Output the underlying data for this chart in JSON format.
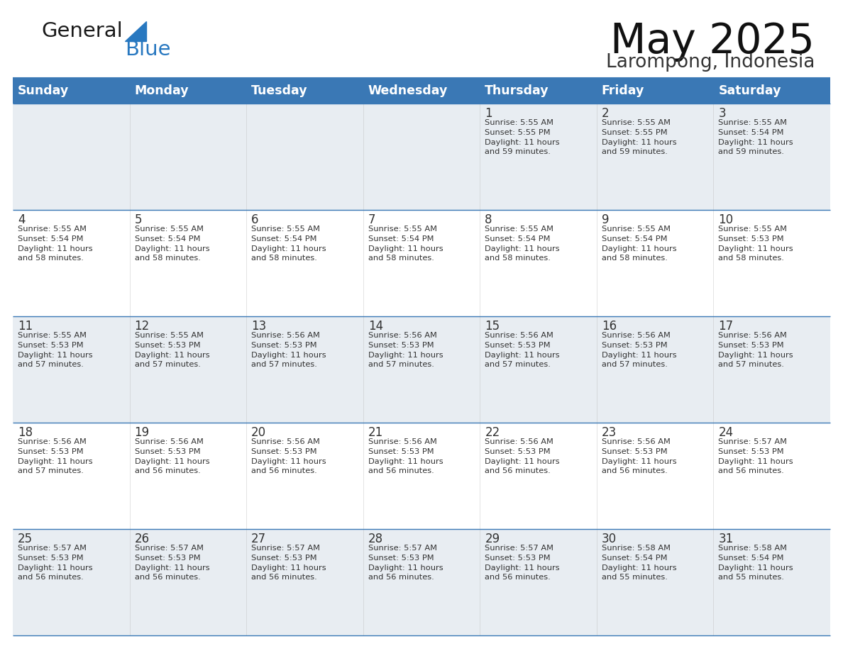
{
  "title": "May 2025",
  "subtitle": "Larompong, Indonesia",
  "header_bg_color": "#3a78b5",
  "header_text_color": "#ffffff",
  "row_bg_odd": "#e8edf2",
  "row_bg_even": "#ffffff",
  "border_color": "#3a78b5",
  "text_color": "#333333",
  "day_number_color": "#333333",
  "day_headers": [
    "Sunday",
    "Monday",
    "Tuesday",
    "Wednesday",
    "Thursday",
    "Friday",
    "Saturday"
  ],
  "logo_general_color": "#1a1a1a",
  "logo_blue_color": "#2878c0",
  "fig_width": 11.88,
  "fig_height": 9.18,
  "calendar_data": [
    [
      {
        "day": "",
        "sunrise": "",
        "sunset": "",
        "daylight": ""
      },
      {
        "day": "",
        "sunrise": "",
        "sunset": "",
        "daylight": ""
      },
      {
        "day": "",
        "sunrise": "",
        "sunset": "",
        "daylight": ""
      },
      {
        "day": "",
        "sunrise": "",
        "sunset": "",
        "daylight": ""
      },
      {
        "day": "1",
        "sunrise": "5:55 AM",
        "sunset": "5:55 PM",
        "daylight": "11 hours and 59 minutes."
      },
      {
        "day": "2",
        "sunrise": "5:55 AM",
        "sunset": "5:55 PM",
        "daylight": "11 hours and 59 minutes."
      },
      {
        "day": "3",
        "sunrise": "5:55 AM",
        "sunset": "5:54 PM",
        "daylight": "11 hours and 59 minutes."
      }
    ],
    [
      {
        "day": "4",
        "sunrise": "5:55 AM",
        "sunset": "5:54 PM",
        "daylight": "11 hours and 58 minutes."
      },
      {
        "day": "5",
        "sunrise": "5:55 AM",
        "sunset": "5:54 PM",
        "daylight": "11 hours and 58 minutes."
      },
      {
        "day": "6",
        "sunrise": "5:55 AM",
        "sunset": "5:54 PM",
        "daylight": "11 hours and 58 minutes."
      },
      {
        "day": "7",
        "sunrise": "5:55 AM",
        "sunset": "5:54 PM",
        "daylight": "11 hours and 58 minutes."
      },
      {
        "day": "8",
        "sunrise": "5:55 AM",
        "sunset": "5:54 PM",
        "daylight": "11 hours and 58 minutes."
      },
      {
        "day": "9",
        "sunrise": "5:55 AM",
        "sunset": "5:54 PM",
        "daylight": "11 hours and 58 minutes."
      },
      {
        "day": "10",
        "sunrise": "5:55 AM",
        "sunset": "5:53 PM",
        "daylight": "11 hours and 58 minutes."
      }
    ],
    [
      {
        "day": "11",
        "sunrise": "5:55 AM",
        "sunset": "5:53 PM",
        "daylight": "11 hours and 57 minutes."
      },
      {
        "day": "12",
        "sunrise": "5:55 AM",
        "sunset": "5:53 PM",
        "daylight": "11 hours and 57 minutes."
      },
      {
        "day": "13",
        "sunrise": "5:56 AM",
        "sunset": "5:53 PM",
        "daylight": "11 hours and 57 minutes."
      },
      {
        "day": "14",
        "sunrise": "5:56 AM",
        "sunset": "5:53 PM",
        "daylight": "11 hours and 57 minutes."
      },
      {
        "day": "15",
        "sunrise": "5:56 AM",
        "sunset": "5:53 PM",
        "daylight": "11 hours and 57 minutes."
      },
      {
        "day": "16",
        "sunrise": "5:56 AM",
        "sunset": "5:53 PM",
        "daylight": "11 hours and 57 minutes."
      },
      {
        "day": "17",
        "sunrise": "5:56 AM",
        "sunset": "5:53 PM",
        "daylight": "11 hours and 57 minutes."
      }
    ],
    [
      {
        "day": "18",
        "sunrise": "5:56 AM",
        "sunset": "5:53 PM",
        "daylight": "11 hours and 57 minutes."
      },
      {
        "day": "19",
        "sunrise": "5:56 AM",
        "sunset": "5:53 PM",
        "daylight": "11 hours and 56 minutes."
      },
      {
        "day": "20",
        "sunrise": "5:56 AM",
        "sunset": "5:53 PM",
        "daylight": "11 hours and 56 minutes."
      },
      {
        "day": "21",
        "sunrise": "5:56 AM",
        "sunset": "5:53 PM",
        "daylight": "11 hours and 56 minutes."
      },
      {
        "day": "22",
        "sunrise": "5:56 AM",
        "sunset": "5:53 PM",
        "daylight": "11 hours and 56 minutes."
      },
      {
        "day": "23",
        "sunrise": "5:56 AM",
        "sunset": "5:53 PM",
        "daylight": "11 hours and 56 minutes."
      },
      {
        "day": "24",
        "sunrise": "5:57 AM",
        "sunset": "5:53 PM",
        "daylight": "11 hours and 56 minutes."
      }
    ],
    [
      {
        "day": "25",
        "sunrise": "5:57 AM",
        "sunset": "5:53 PM",
        "daylight": "11 hours and 56 minutes."
      },
      {
        "day": "26",
        "sunrise": "5:57 AM",
        "sunset": "5:53 PM",
        "daylight": "11 hours and 56 minutes."
      },
      {
        "day": "27",
        "sunrise": "5:57 AM",
        "sunset": "5:53 PM",
        "daylight": "11 hours and 56 minutes."
      },
      {
        "day": "28",
        "sunrise": "5:57 AM",
        "sunset": "5:53 PM",
        "daylight": "11 hours and 56 minutes."
      },
      {
        "day": "29",
        "sunrise": "5:57 AM",
        "sunset": "5:53 PM",
        "daylight": "11 hours and 56 minutes."
      },
      {
        "day": "30",
        "sunrise": "5:58 AM",
        "sunset": "5:54 PM",
        "daylight": "11 hours and 55 minutes."
      },
      {
        "day": "31",
        "sunrise": "5:58 AM",
        "sunset": "5:54 PM",
        "daylight": "11 hours and 55 minutes."
      }
    ]
  ]
}
